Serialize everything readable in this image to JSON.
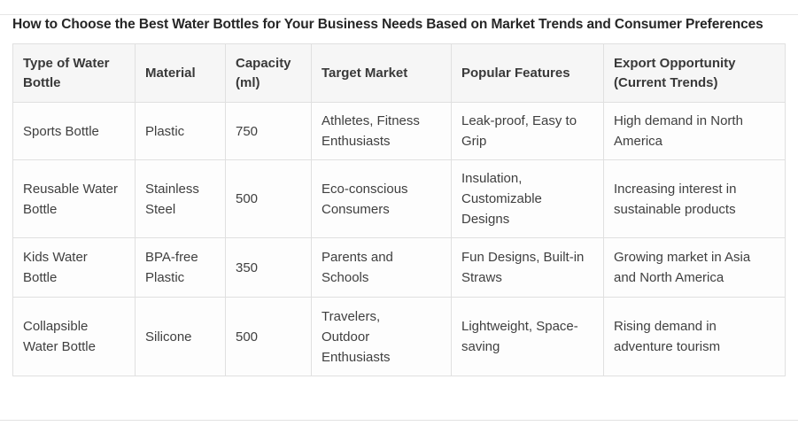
{
  "page": {
    "title": "How to Choose the Best Water Bottles for Your Business Needs Based on Market Trends and Consumer Preferences"
  },
  "table": {
    "columns": [
      "Type of Water\nBottle",
      "Material",
      "Capacity\n(ml)",
      "Target Market",
      "Popular Features",
      "Export Opportunity\n(Current Trends)"
    ],
    "rows": [
      [
        "Sports Bottle",
        "Plastic",
        "750",
        "Athletes, Fitness\nEnthusiasts",
        "Leak-proof, Easy to\nGrip",
        "High demand in North\nAmerica"
      ],
      [
        "Reusable Water\nBottle",
        "Stainless\nSteel",
        "500",
        "Eco-conscious\nConsumers",
        "Insulation,\nCustomizable\nDesigns",
        "Increasing interest in\nsustainable products"
      ],
      [
        "Kids Water\nBottle",
        "BPA-free\nPlastic",
        "350",
        "Parents and\nSchools",
        "Fun Designs, Built-in\nStraws",
        "Growing market in Asia\nand North America"
      ],
      [
        "Collapsible\nWater Bottle",
        "Silicone",
        "500",
        "Travelers,\nOutdoor\nEnthusiasts",
        "Lightweight, Space-\nsaving",
        "Rising demand in\nadventure tourism"
      ]
    ]
  },
  "colors": {
    "page_background": "#ffffff",
    "header_background": "#f6f6f6",
    "cell_background": "#fdfdfd",
    "border": "#e0e0e0",
    "title_text": "#262626",
    "body_text": "#3f3f3f",
    "divider": "#e2e2e2"
  }
}
